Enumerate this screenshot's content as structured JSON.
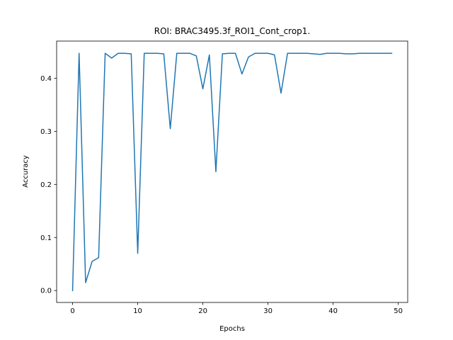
{
  "chart_data": {
    "type": "line",
    "title": "ROI: BRAC3495.3f_ROI1_Cont_crop1.",
    "xlabel": "Epochs",
    "ylabel": "Accuracy",
    "xlim": [
      -2.45,
      51.45
    ],
    "ylim": [
      -0.0224,
      0.47
    ],
    "xticks": [
      0,
      10,
      20,
      30,
      40,
      50
    ],
    "yticks": [
      0.0,
      0.1,
      0.2,
      0.3,
      0.4
    ],
    "xtick_labels": [
      "0",
      "10",
      "20",
      "30",
      "40",
      "50"
    ],
    "ytick_labels": [
      "0.0",
      "0.1",
      "0.2",
      "0.3",
      "0.4"
    ],
    "grid": false,
    "series": [
      {
        "color": "#1f77b4",
        "x": [
          0,
          1,
          2,
          3,
          4,
          5,
          6,
          7,
          8,
          9,
          10,
          11,
          12,
          13,
          14,
          15,
          16,
          17,
          18,
          19,
          20,
          21,
          22,
          23,
          24,
          25,
          26,
          27,
          28,
          29,
          30,
          31,
          32,
          33,
          34,
          35,
          36,
          37,
          38,
          39,
          40,
          41,
          42,
          43,
          44,
          45,
          46,
          47,
          48,
          49
        ],
        "values": [
          0.0,
          0.447,
          0.015,
          0.055,
          0.062,
          0.447,
          0.438,
          0.447,
          0.447,
          0.446,
          0.07,
          0.447,
          0.447,
          0.447,
          0.446,
          0.305,
          0.447,
          0.447,
          0.447,
          0.442,
          0.38,
          0.444,
          0.224,
          0.446,
          0.447,
          0.447,
          0.408,
          0.44,
          0.447,
          0.447,
          0.447,
          0.444,
          0.372,
          0.447,
          0.447,
          0.447,
          0.447,
          0.446,
          0.445,
          0.447,
          0.447,
          0.447,
          0.446,
          0.446,
          0.447,
          0.447,
          0.447,
          0.447,
          0.447,
          0.447
        ]
      }
    ]
  }
}
